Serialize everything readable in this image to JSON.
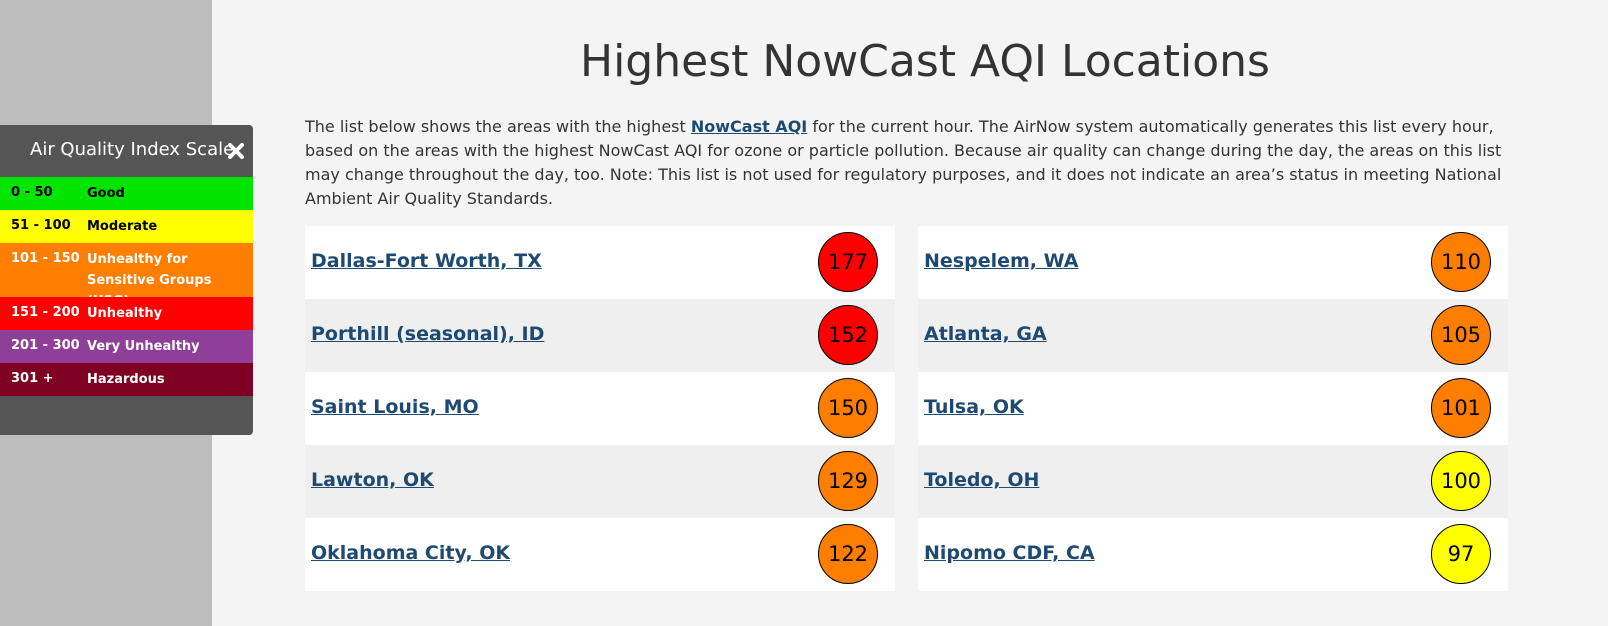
{
  "legend": {
    "title": "Air Quality Index Scale",
    "rows": [
      {
        "range": "0 - 50",
        "label": "Good",
        "color": "#00e400",
        "text_color": "#000000"
      },
      {
        "range": "51 - 100",
        "label": "Moderate",
        "color": "#ffff00",
        "text_color": "#000000"
      },
      {
        "range": "101 - 150",
        "label": "Unhealthy for Sensitive Groups (USG)",
        "color": "#ff7e00",
        "text_color": "#ffffff"
      },
      {
        "range": "151 - 200",
        "label": "Unhealthy",
        "color": "#ff0000",
        "text_color": "#ffffff"
      },
      {
        "range": "201 - 300",
        "label": "Very Unhealthy",
        "color": "#8f3f97",
        "text_color": "#ffffff"
      },
      {
        "range": "301 +",
        "label": "Hazardous",
        "color": "#7e0023",
        "text_color": "#ffffff"
      }
    ]
  },
  "page": {
    "title": "Highest NowCast AQI Locations",
    "intro_before": "The list below shows the areas with the highest ",
    "intro_link": "NowCast AQI",
    "intro_after": " for the current hour. The AirNow system automatically generates this list every hour, based on the areas with the highest NowCast AQI for ozone or particle pollution. Because air quality can change during the day, the areas on this list may change throughout the day, too. Note: This list is not used for regulatory purposes, and it does not indicate an area’s status in meeting National Ambient Air Quality Standards."
  },
  "locations": [
    [
      {
        "name": "Dallas-Fort Worth, TX",
        "aqi": 177,
        "color": "#ff0000"
      },
      {
        "name": "Porthill (seasonal), ID",
        "aqi": 152,
        "color": "#ff0000"
      },
      {
        "name": "Saint Louis, MO",
        "aqi": 150,
        "color": "#ff7e00"
      },
      {
        "name": "Lawton, OK",
        "aqi": 129,
        "color": "#ff7e00"
      },
      {
        "name": "Oklahoma City, OK",
        "aqi": 122,
        "color": "#ff7e00"
      }
    ],
    [
      {
        "name": "Nespelem, WA",
        "aqi": 110,
        "color": "#ff7e00"
      },
      {
        "name": "Atlanta, GA",
        "aqi": 105,
        "color": "#ff7e00"
      },
      {
        "name": "Tulsa, OK",
        "aqi": 101,
        "color": "#ff7e00"
      },
      {
        "name": "Toledo, OH",
        "aqi": 100,
        "color": "#ffff00"
      },
      {
        "name": "Nipomo CDF, CA",
        "aqi": 97,
        "color": "#ffff00"
      }
    ]
  ]
}
